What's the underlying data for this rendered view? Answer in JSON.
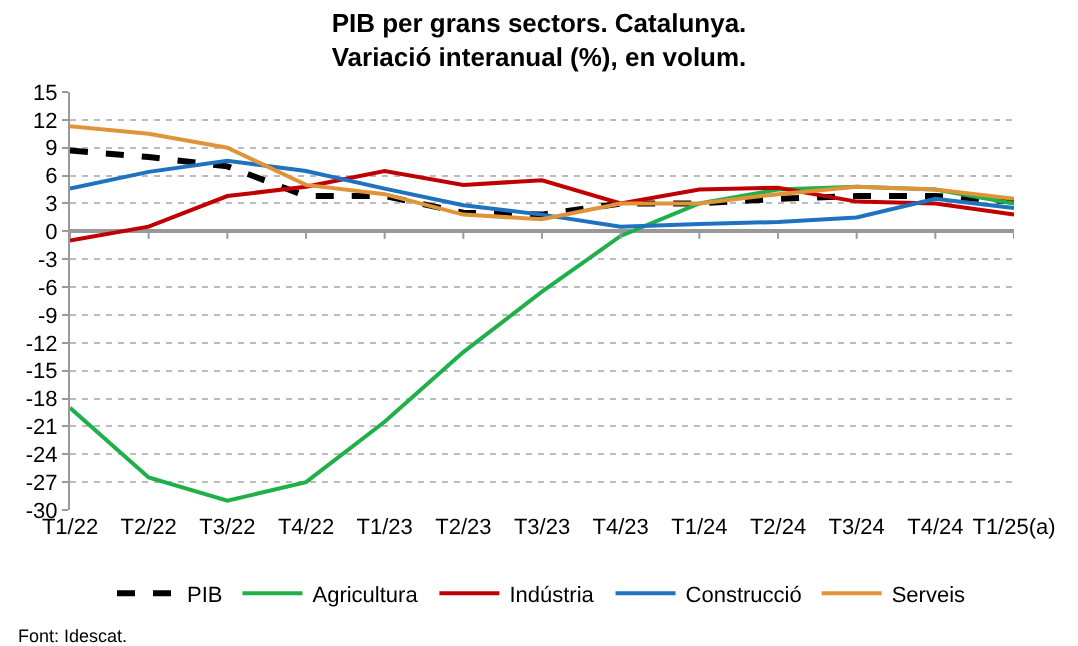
{
  "chart_data": {
    "type": "line",
    "title": "PIB per grans sectors. Catalunya.\nVariació interanual (%), en volum.",
    "categories": [
      "T1/22",
      "T2/22",
      "T3/22",
      "T4/22",
      "T1/23",
      "T2/23",
      "T3/23",
      "T4/23",
      "T1/24",
      "T2/24",
      "T3/24",
      "T4/24",
      "T1/25(a)"
    ],
    "series": [
      {
        "name": "PIB",
        "color": "#000000",
        "line_style": "dashed",
        "values": [
          8.7,
          8.0,
          7.0,
          3.8,
          3.8,
          2.0,
          1.8,
          3.0,
          3.0,
          3.5,
          3.8,
          3.8,
          3.2
        ]
      },
      {
        "name": "Agricultura",
        "color": "#1fb04a",
        "values": [
          -19,
          -26.5,
          -29,
          -27,
          -20.5,
          -13,
          -6.5,
          -0.5,
          3.0,
          4.5,
          4.8,
          4.5,
          3.0
        ]
      },
      {
        "name": "Indústria",
        "color": "#c00000",
        "values": [
          -1.0,
          0.5,
          3.8,
          4.8,
          6.5,
          5.0,
          5.5,
          3.0,
          4.5,
          4.7,
          3.2,
          3.0,
          1.8
        ]
      },
      {
        "name": "Construcció",
        "color": "#1f72c0",
        "values": [
          4.6,
          6.4,
          7.6,
          6.5,
          4.6,
          2.8,
          1.8,
          0.5,
          0.8,
          1.0,
          1.5,
          3.5,
          2.5
        ]
      },
      {
        "name": "Serveis",
        "color": "#e0943a",
        "values": [
          11.3,
          10.5,
          9.0,
          5.0,
          4.0,
          1.8,
          1.3,
          3.0,
          3.0,
          4.0,
          4.8,
          4.5,
          3.5
        ]
      }
    ],
    "ylim": [
      -30,
      15
    ],
    "yticks": [
      -30,
      -27,
      -24,
      -21,
      -18,
      -15,
      -12,
      -9,
      -6,
      -3,
      0,
      3,
      6,
      9,
      12,
      15
    ],
    "grid": "y",
    "legend": "bottom",
    "marker": "none",
    "line_style": "solid",
    "annotations": [
      "Font: Idescat."
    ]
  }
}
